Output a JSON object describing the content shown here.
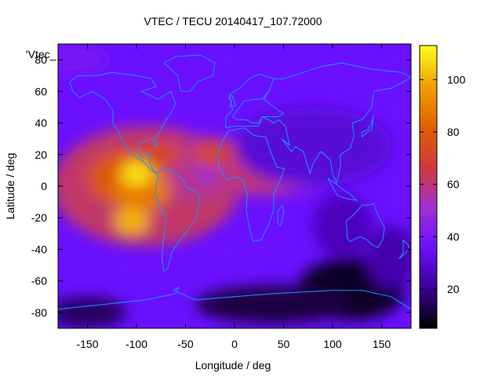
{
  "chart_data": {
    "type": "heatmap",
    "title": "VTEC / TECU 20140417_107.72000",
    "legend_label": "'Vtec_",
    "xlabel": "Longitude / deg",
    "ylabel": "Latitude / deg",
    "xlim": [
      -180,
      180
    ],
    "ylim": [
      -90,
      90
    ],
    "x_ticks": [
      -150,
      -100,
      -50,
      0,
      50,
      100,
      150
    ],
    "y_ticks": [
      -80,
      -60,
      -40,
      -20,
      0,
      20,
      40,
      60,
      80
    ],
    "colorbar": {
      "range": [
        5,
        113
      ],
      "ticks": [
        20,
        40,
        60,
        80,
        100
      ],
      "colors": [
        "#000000",
        "#3a0094",
        "#6a10ff",
        "#a030d0",
        "#d03a3a",
        "#e06000",
        "#f0a000",
        "#ffff20"
      ]
    },
    "features": [
      {
        "description": "equatorial anomaly crest north",
        "lon": -100,
        "lat": 8,
        "value": 110
      },
      {
        "description": "equatorial anomaly crest south",
        "lon": -100,
        "lat": -20,
        "value": 105
      },
      {
        "description": "atlantic extension",
        "lon": -20,
        "lat": 10,
        "value": 75
      },
      {
        "description": "africa extension",
        "lon": 40,
        "lat": 0,
        "value": 60
      },
      {
        "description": "background mid-latitudes",
        "lon": 100,
        "lat": 40,
        "value": 32
      },
      {
        "description": "night-side minimum",
        "lon": 120,
        "lat": -70,
        "value": 8
      }
    ]
  }
}
